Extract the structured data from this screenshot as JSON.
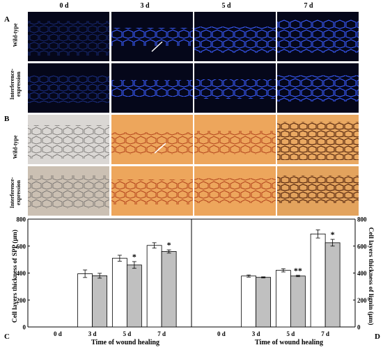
{
  "figure": {
    "column_headers": [
      "0 d",
      "3 d",
      "5 d",
      "7 d"
    ],
    "panel_letters": {
      "A": "A",
      "B": "B",
      "C": "C",
      "D": "D"
    },
    "row_labels_A": [
      "Wild-type",
      "Interference-\nexpression"
    ],
    "row_labels_B": [
      "Wild-type",
      "Interference-\nexpression"
    ],
    "colors": {
      "fluor_bg": "#05071a",
      "fluor_cell": "#3a5cff",
      "stain_bg": "#e8a25c",
      "stain_cell": "#b2431c",
      "bar_wt": "#ffffff",
      "bar_int": "#c0c0c0"
    }
  },
  "chart_data": [
    {
      "type": "bar",
      "panel": "C",
      "categories": [
        "0 d",
        "3 d",
        "5 d",
        "7 d"
      ],
      "series": [
        {
          "values": [
            0,
            395,
            510,
            605
          ],
          "errors": [
            0,
            28,
            22,
            20
          ]
        },
        {
          "values": [
            0,
            380,
            460,
            560
          ],
          "errors": [
            0,
            18,
            25,
            12
          ]
        }
      ],
      "significance": [
        "",
        "",
        "*",
        "*"
      ],
      "xlabel": "Time of wound healing",
      "ylabel": "Cell layers thickness of SPP (μm)",
      "ylim": [
        0,
        800
      ],
      "yticks": [
        0,
        200,
        400,
        600,
        800
      ]
    },
    {
      "type": "bar",
      "panel": "D",
      "categories": [
        "0 d",
        "3 d",
        "5 d",
        "7 d"
      ],
      "series": [
        {
          "values": [
            0,
            378,
            420,
            690
          ],
          "errors": [
            0,
            8,
            12,
            30
          ]
        },
        {
          "values": [
            0,
            368,
            378,
            625
          ],
          "errors": [
            0,
            4,
            5,
            25
          ]
        }
      ],
      "significance": [
        "",
        "",
        "**",
        "*"
      ],
      "xlabel": "Time of wound healing",
      "ylabel": "Cell layers thickness of lignin (μm)",
      "ylim": [
        0,
        800
      ],
      "yticks": [
        0,
        200,
        400,
        600,
        800
      ]
    }
  ]
}
